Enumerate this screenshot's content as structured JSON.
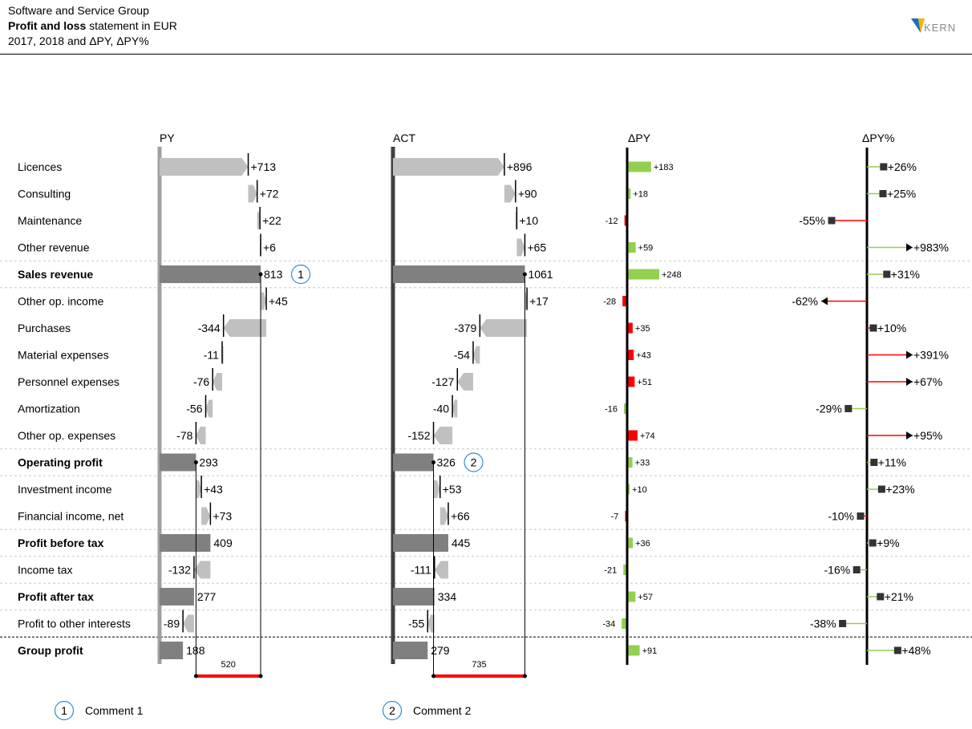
{
  "header": {
    "company": "Software and Service Group",
    "title_bold": "Profit and loss",
    "title_rest": " statement in EUR",
    "subtitle": "2017, 2018 and ΔPY, ΔPY%",
    "logo_text": "KERN"
  },
  "chart_data": {
    "type": "waterfall",
    "columns": [
      "PY",
      "ACT",
      "ΔPY",
      "ΔPY%"
    ],
    "rows": [
      {
        "label": "Licences",
        "bold": false,
        "kind": "delta",
        "py": 713,
        "act": 896,
        "py_label": "+713",
        "act_label": "+896",
        "dpy": 183,
        "dpy_label": "+183",
        "dpy_color": "green",
        "dpct": 26,
        "dpct_label": "+26%",
        "dpct_color": "green"
      },
      {
        "label": "Consulting",
        "bold": false,
        "kind": "delta",
        "py": 72,
        "act": 90,
        "py_label": "+72",
        "act_label": "+90",
        "dpy": 18,
        "dpy_label": "+18",
        "dpy_color": "green",
        "dpct": 25,
        "dpct_label": "+25%",
        "dpct_color": "green"
      },
      {
        "label": "Maintenance",
        "bold": false,
        "kind": "delta",
        "py": 22,
        "act": 10,
        "py_label": "+22",
        "act_label": "+10",
        "dpy": -12,
        "dpy_label": "-12",
        "dpy_color": "red",
        "dpct": -55,
        "dpct_label": "-55%",
        "dpct_color": "red"
      },
      {
        "label": "Other revenue",
        "bold": false,
        "kind": "delta",
        "py": 6,
        "act": 65,
        "py_label": "+6",
        "act_label": "+65",
        "dpy": 59,
        "dpy_label": "+59",
        "dpy_color": "green",
        "dpct": 983,
        "dpct_label": "+983%",
        "dpct_color": "green",
        "dpct_clipped": true
      },
      {
        "label": "Sales revenue",
        "bold": true,
        "kind": "total",
        "py": 813,
        "act": 1061,
        "py_label": "813",
        "act_label": "1061",
        "dpy": 248,
        "dpy_label": "+248",
        "dpy_color": "green",
        "dpct": 31,
        "dpct_label": "+31%",
        "dpct_color": "green",
        "separator": "dashed"
      },
      {
        "label": "Other op. income",
        "bold": false,
        "kind": "delta",
        "py": 45,
        "act": 17,
        "py_label": "+45",
        "act_label": "+17",
        "dpy": -28,
        "dpy_label": "-28",
        "dpy_color": "red",
        "dpct": -62,
        "dpct_label": "-62%",
        "dpct_color": "red",
        "dpct_clipped": true
      },
      {
        "label": "Purchases",
        "bold": false,
        "kind": "delta",
        "py": -344,
        "act": -379,
        "py_label": "-344",
        "act_label": "-379",
        "dpy": 35,
        "dpy_label": "+35",
        "dpy_color": "red",
        "dpct": 10,
        "dpct_label": "+10%",
        "dpct_color": "red"
      },
      {
        "label": "Material expenses",
        "bold": false,
        "kind": "delta",
        "py": -11,
        "act": -54,
        "py_label": "-11",
        "act_label": "-54",
        "dpy": 43,
        "dpy_label": "+43",
        "dpy_color": "red",
        "dpct": 391,
        "dpct_label": "+391%",
        "dpct_color": "red",
        "dpct_clipped": true
      },
      {
        "label": "Personnel expenses",
        "bold": false,
        "kind": "delta",
        "py": -76,
        "act": -127,
        "py_label": "-76",
        "act_label": "-127",
        "dpy": 51,
        "dpy_label": "+51",
        "dpy_color": "red",
        "dpct": 67,
        "dpct_label": "+67%",
        "dpct_color": "red",
        "dpct_clipped": true
      },
      {
        "label": "Amortization",
        "bold": false,
        "kind": "delta",
        "py": -56,
        "act": -40,
        "py_label": "-56",
        "act_label": "-40",
        "dpy": -16,
        "dpy_label": "-16",
        "dpy_color": "green",
        "dpct": -29,
        "dpct_label": "-29%",
        "dpct_color": "green"
      },
      {
        "label": "Other op. expenses",
        "bold": false,
        "kind": "delta",
        "py": -78,
        "act": -152,
        "py_label": "-78",
        "act_label": "-152",
        "dpy": 74,
        "dpy_label": "+74",
        "dpy_color": "red",
        "dpct": 95,
        "dpct_label": "+95%",
        "dpct_color": "red",
        "dpct_clipped": true
      },
      {
        "label": "Operating profit",
        "bold": true,
        "kind": "total",
        "py": 293,
        "act": 326,
        "py_label": "293",
        "act_label": "326",
        "dpy": 33,
        "dpy_label": "+33",
        "dpy_color": "green",
        "dpct": 11,
        "dpct_label": "+11%",
        "dpct_color": "green",
        "separator": "dashed"
      },
      {
        "label": "Investment income",
        "bold": false,
        "kind": "delta",
        "py": 43,
        "act": 53,
        "py_label": "+43",
        "act_label": "+53",
        "dpy": 10,
        "dpy_label": "+10",
        "dpy_color": "green",
        "dpct": 23,
        "dpct_label": "+23%",
        "dpct_color": "green"
      },
      {
        "label": "Financial income, net",
        "bold": false,
        "kind": "delta",
        "py": 73,
        "act": 66,
        "py_label": "+73",
        "act_label": "+66",
        "dpy": -7,
        "dpy_label": "-7",
        "dpy_color": "red",
        "dpct": -10,
        "dpct_label": "-10%",
        "dpct_color": "red"
      },
      {
        "label": "Profit before tax",
        "bold": true,
        "kind": "total",
        "py": 409,
        "act": 445,
        "py_label": "409",
        "act_label": "445",
        "dpy": 36,
        "dpy_label": "+36",
        "dpy_color": "green",
        "dpct": 9,
        "dpct_label": "+9%",
        "dpct_color": "green",
        "separator": "dashed"
      },
      {
        "label": "Income tax",
        "bold": false,
        "kind": "delta",
        "py": -132,
        "act": -111,
        "py_label": "-132",
        "act_label": "-111",
        "dpy": -21,
        "dpy_label": "-21",
        "dpy_color": "green",
        "dpct": -16,
        "dpct_label": "-16%",
        "dpct_color": "green"
      },
      {
        "label": "Profit after tax",
        "bold": true,
        "kind": "total",
        "py": 277,
        "act": 334,
        "py_label": "277",
        "act_label": "334",
        "dpy": 57,
        "dpy_label": "+57",
        "dpy_color": "green",
        "dpct": 21,
        "dpct_label": "+21%",
        "dpct_color": "green",
        "separator": "dashed"
      },
      {
        "label": "Profit to other interests",
        "bold": false,
        "kind": "delta",
        "py": -89,
        "act": -55,
        "py_label": "-89",
        "act_label": "-55",
        "dpy": -34,
        "dpy_label": "-34",
        "dpy_color": "green",
        "dpct": -38,
        "dpct_label": "-38%",
        "dpct_color": "green"
      },
      {
        "label": "Group profit",
        "bold": true,
        "kind": "total",
        "py": 188,
        "act": 279,
        "py_label": "188",
        "act_label": "279",
        "dpy": 91,
        "dpy_label": "+91",
        "dpy_color": "green",
        "dpct": 48,
        "dpct_label": "+48%",
        "dpct_color": "green",
        "separator": "solid-dashed"
      }
    ],
    "comments": [
      {
        "marker": "1",
        "column": "PY",
        "row": "Sales revenue",
        "text": "Comment 1"
      },
      {
        "marker": "2",
        "column": "ACT",
        "row": "Operating profit",
        "text": "Comment 2"
      }
    ],
    "difference_brackets": [
      {
        "column": "PY",
        "from_row": "Operating profit",
        "to_row": "Sales revenue",
        "value": 520,
        "label": "520"
      },
      {
        "column": "ACT",
        "from_row": "Operating profit",
        "to_row": "Sales revenue",
        "value": 735,
        "label": "735"
      }
    ],
    "colors": {
      "py_total": "#808080",
      "act_total": "#808080",
      "delta_bar": "#c0c0c0",
      "axis_py": "#a0a0a0",
      "axis_act": "#404040",
      "good": "#92d050",
      "bad": "#ff0000",
      "bracket": "#ff0000",
      "comment_circle": "#2f8fcf",
      "grid": "#c8c8c8"
    }
  },
  "footer_comments": [
    {
      "marker": "1",
      "text": "Comment 1"
    },
    {
      "marker": "2",
      "text": "Comment 2"
    }
  ]
}
